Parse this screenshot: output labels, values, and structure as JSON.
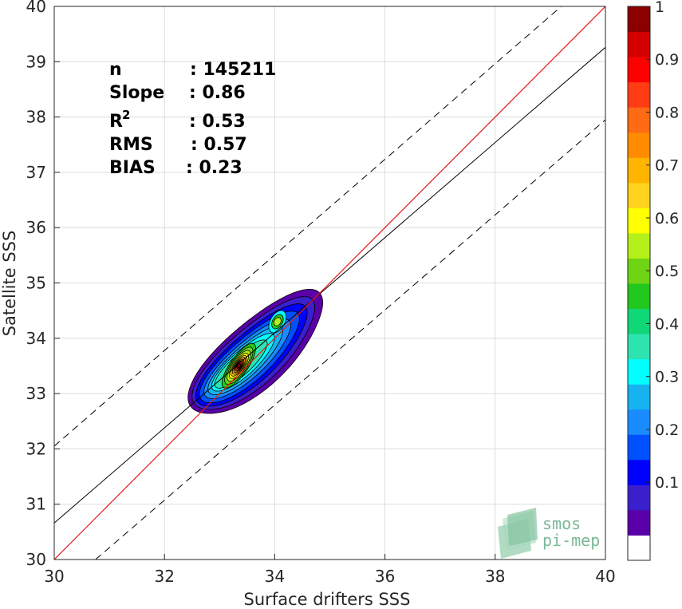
{
  "chart_data": {
    "type": "heatmap",
    "title": "",
    "xlabel": "Surface drifters SSS",
    "ylabel": "Satellite SSS",
    "xlim": [
      30,
      40
    ],
    "ylim": [
      30,
      40
    ],
    "xticks": [
      30,
      32,
      34,
      36,
      38,
      40
    ],
    "yticks": [
      30,
      31,
      32,
      33,
      34,
      35,
      36,
      37,
      38,
      39,
      40
    ],
    "grid": true,
    "stats": {
      "n_label": "n",
      "n_value": ": 145211",
      "slope_label": "Slope",
      "slope_value": ": 0.86",
      "r2_label": "R",
      "r2_sup": "2",
      "r2_value": ": 0.53",
      "rms_label": "RMS",
      "rms_value": ": 0.57",
      "bias_label": "BIAS",
      "bias_value": ": 0.23"
    },
    "lines": {
      "identity": {
        "x": [
          30,
          40
        ],
        "y": [
          30,
          40
        ],
        "color": "#e41a1c"
      },
      "fit": {
        "x": [
          30,
          40
        ],
        "y": [
          30.66,
          39.26
        ],
        "color": "#000000"
      },
      "upper_bound": {
        "x": [
          30,
          39.2
        ],
        "y": [
          32.05,
          40
        ],
        "color": "#000000",
        "style": "dashed"
      },
      "lower_bound": {
        "x": [
          30.75,
          40
        ],
        "y": [
          30,
          37.95
        ],
        "color": "#000000",
        "style": "dashed"
      }
    },
    "density_peak": {
      "x": 33.35,
      "y": 33.5
    },
    "secondary_peak": {
      "x": 34.05,
      "y": 34.25
    },
    "colorbar": {
      "range": [
        0,
        1
      ],
      "ticks": [
        "0.1",
        "0.2",
        "0.3",
        "0.4",
        "0.5",
        "0.6",
        "0.7",
        "0.8",
        "0.9",
        "1"
      ],
      "colors": [
        "#ffffff",
        "#5a00a8",
        "#3a1fcc",
        "#0000ff",
        "#0050ff",
        "#1a8cff",
        "#17b3f0",
        "#00ffff",
        "#2de3b0",
        "#10d878",
        "#22c81e",
        "#6ed414",
        "#b4f01a",
        "#ffff00",
        "#ffd21e",
        "#ffb400",
        "#ff8c00",
        "#ff6a14",
        "#ff3c14",
        "#ff0000",
        "#d40000",
        "#8b0000"
      ]
    },
    "logo": {
      "line1": "smos",
      "line2": "pi-mep"
    }
  }
}
